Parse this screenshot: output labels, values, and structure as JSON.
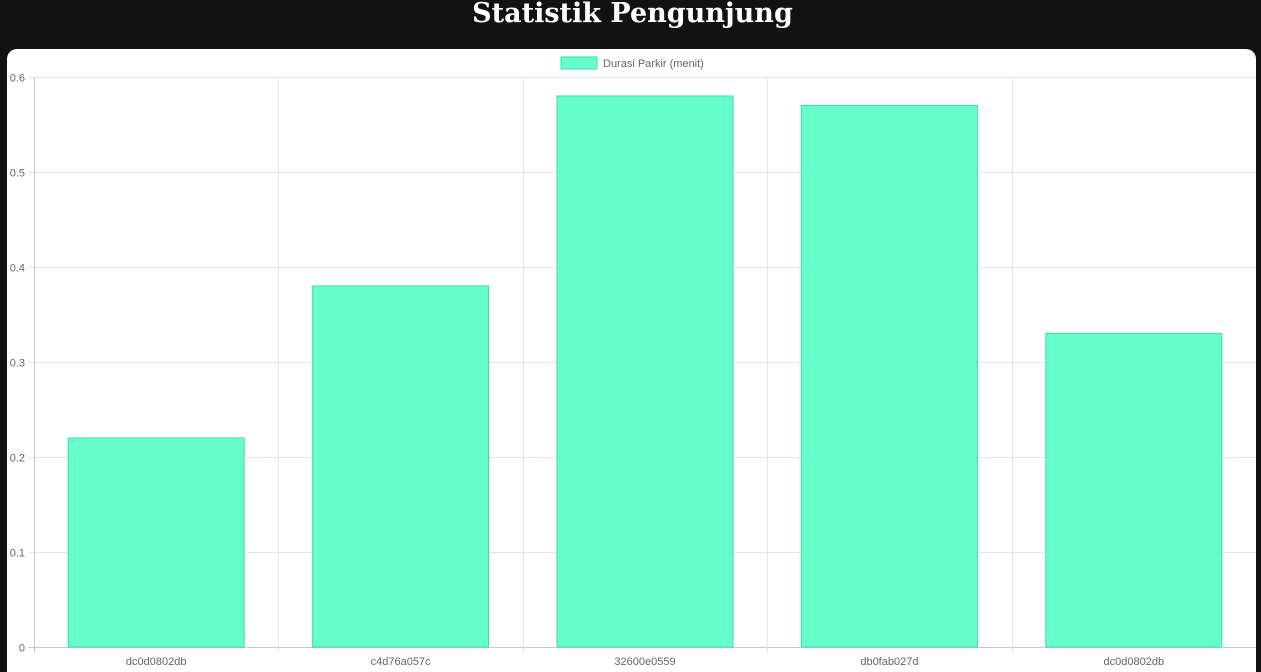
{
  "page": {
    "title": "Statistik Pengunjung"
  },
  "colors": {
    "page_background": "#121212",
    "card_background": "#ffffff",
    "bar_fill": "#66ffcc",
    "bar_border": "#33e0b0",
    "grid": "#e6e6e6",
    "tick_text": "#666666"
  },
  "chart_data": {
    "type": "bar",
    "categories": [
      "dc0d0802db",
      "c4d76a057c",
      "32600e0559",
      "db0fab027d",
      "dc0d0802db"
    ],
    "series": [
      {
        "name": "Durasi Parkir (menit)",
        "values": [
          0.22,
          0.38,
          0.58,
          0.57,
          0.33
        ]
      }
    ],
    "yticks": [
      "0",
      "0.1",
      "0.2",
      "0.3",
      "0.4",
      "0.5",
      "0.6"
    ],
    "ylim": [
      0,
      0.6
    ],
    "grid": true,
    "legend": "top-center"
  }
}
